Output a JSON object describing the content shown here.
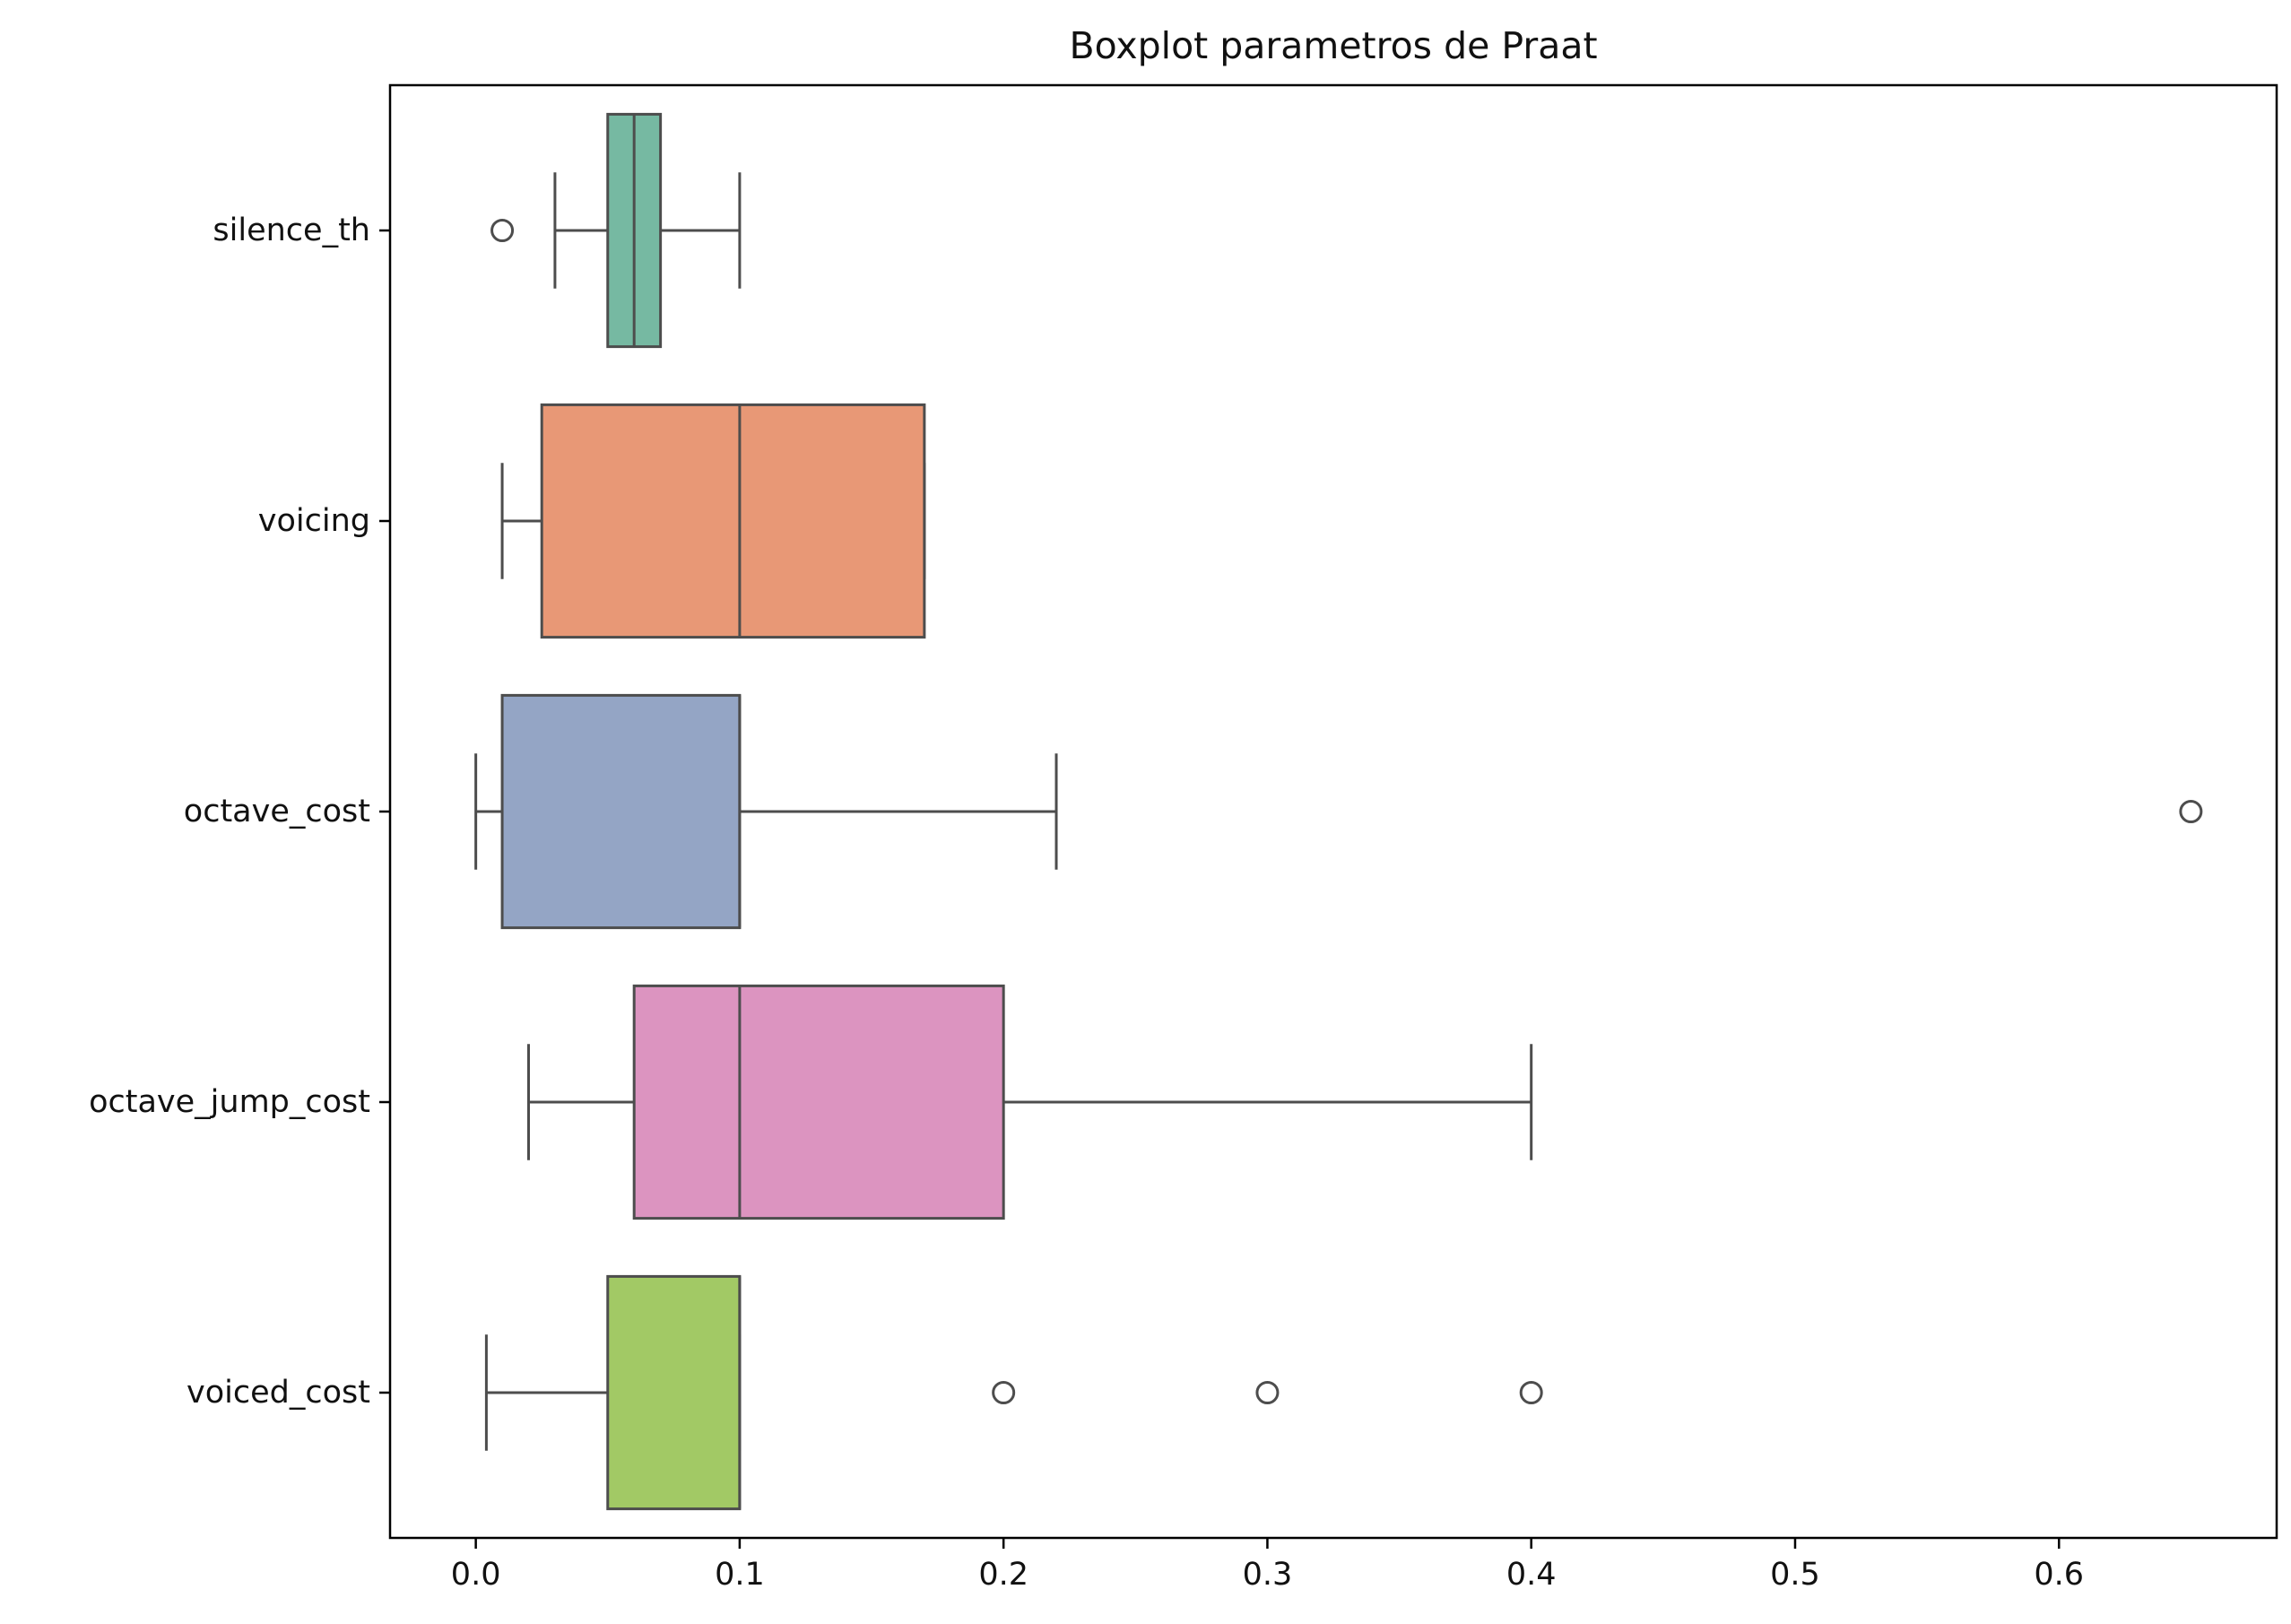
{
  "chart_data": {
    "type": "boxplot",
    "orientation": "horizontal",
    "title": "Boxplot parametros de Praat",
    "xlabel": "",
    "ylabel": "",
    "xlim": [
      -0.0325,
      0.6825
    ],
    "xticks": [
      0.0,
      0.1,
      0.2,
      0.3,
      0.4,
      0.5,
      0.6
    ],
    "xtick_labels": [
      "0.0",
      "0.1",
      "0.2",
      "0.3",
      "0.4",
      "0.5",
      "0.6"
    ],
    "grid": false,
    "legend": "none",
    "categories": [
      "silence_th",
      "voicing",
      "octave_cost",
      "octave_jump_cost",
      "voiced_cost"
    ],
    "boxes": [
      {
        "label": "silence_th",
        "color": "#76b9a2",
        "whisker_low": 0.03,
        "q1": 0.05,
        "median": 0.06,
        "q3": 0.07,
        "whisker_high": 0.1,
        "outliers": [
          0.01
        ]
      },
      {
        "label": "voicing",
        "color": "#e89876",
        "whisker_low": 0.01,
        "q1": 0.025,
        "median": 0.1,
        "q3": 0.17,
        "whisker_high": 0.17,
        "outliers": []
      },
      {
        "label": "octave_cost",
        "color": "#94a5c5",
        "whisker_low": 0.0,
        "q1": 0.01,
        "median": 0.1,
        "q3": 0.1,
        "whisker_high": 0.22,
        "outliers": [
          0.65
        ]
      },
      {
        "label": "octave_jump_cost",
        "color": "#dc94c0",
        "whisker_low": 0.02,
        "q1": 0.06,
        "median": 0.1,
        "q3": 0.2,
        "whisker_high": 0.4,
        "outliers": []
      },
      {
        "label": "voiced_cost",
        "color": "#a2c965",
        "whisker_low": 0.004,
        "q1": 0.05,
        "median": 0.1,
        "q3": 0.1,
        "whisker_high": 0.1,
        "outliers": [
          0.2,
          0.3,
          0.4
        ]
      }
    ]
  }
}
